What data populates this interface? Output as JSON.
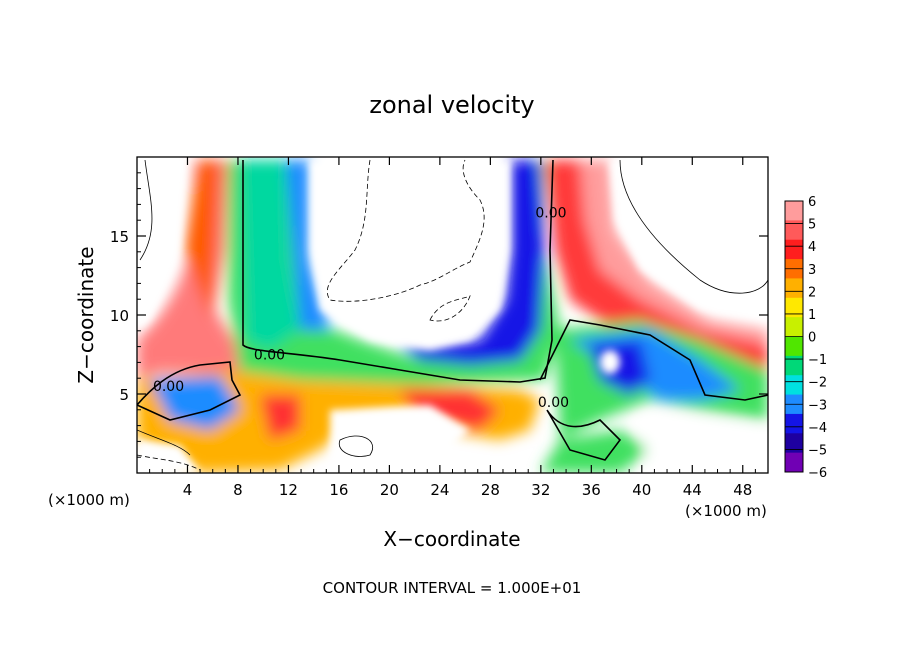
{
  "chart_data": {
    "type": "heatmap",
    "title": "zonal velocity",
    "xlabel": "X−coordinate",
    "ylabel": "Z−coordinate",
    "x_unit_left": "(×1000 m)",
    "x_unit_right": "(×1000 m)",
    "footer": "CONTOUR INTERVAL = 1.000E+01",
    "xlim": [
      0,
      50
    ],
    "ylim": [
      0,
      20
    ],
    "x_ticks": [
      4,
      8,
      12,
      16,
      20,
      24,
      28,
      32,
      36,
      40,
      44,
      48
    ],
    "x_tick_labels": [
      "4",
      "8",
      "12",
      "16",
      "20",
      "24",
      "28",
      "32",
      "36",
      "40",
      "44",
      "48"
    ],
    "y_ticks": [
      5,
      10,
      15
    ],
    "y_tick_labels": [
      "5",
      "10",
      "15"
    ],
    "colorbar": {
      "levels": [
        6,
        5,
        4,
        3,
        2,
        1,
        0,
        -1,
        -2,
        -3,
        -4,
        -5,
        -6
      ],
      "labels": [
        "6",
        "5",
        "4",
        "3",
        "2",
        "1",
        "0",
        "−1",
        "−2",
        "−3",
        "−4",
        "−5",
        "−6"
      ],
      "colors": [
        "#ff9c9c",
        "#ff5a5a",
        "#ff1e1e",
        "#ff6e00",
        "#ffb000",
        "#ffe800",
        "#c8f000",
        "#50e600",
        "#00d878",
        "#00e0e0",
        "#1e8cff",
        "#1414e6",
        "#1e00a0",
        "#7000b4"
      ]
    },
    "contour_labels": [
      {
        "text": "0.00",
        "x": 10.5,
        "y": 7.5
      },
      {
        "text": "0.00",
        "x": 2.5,
        "y": 5.5
      },
      {
        "text": "0.00",
        "x": 32.8,
        "y": 16.5
      },
      {
        "text": "0.00",
        "x": 33.0,
        "y": 4.5
      }
    ]
  }
}
